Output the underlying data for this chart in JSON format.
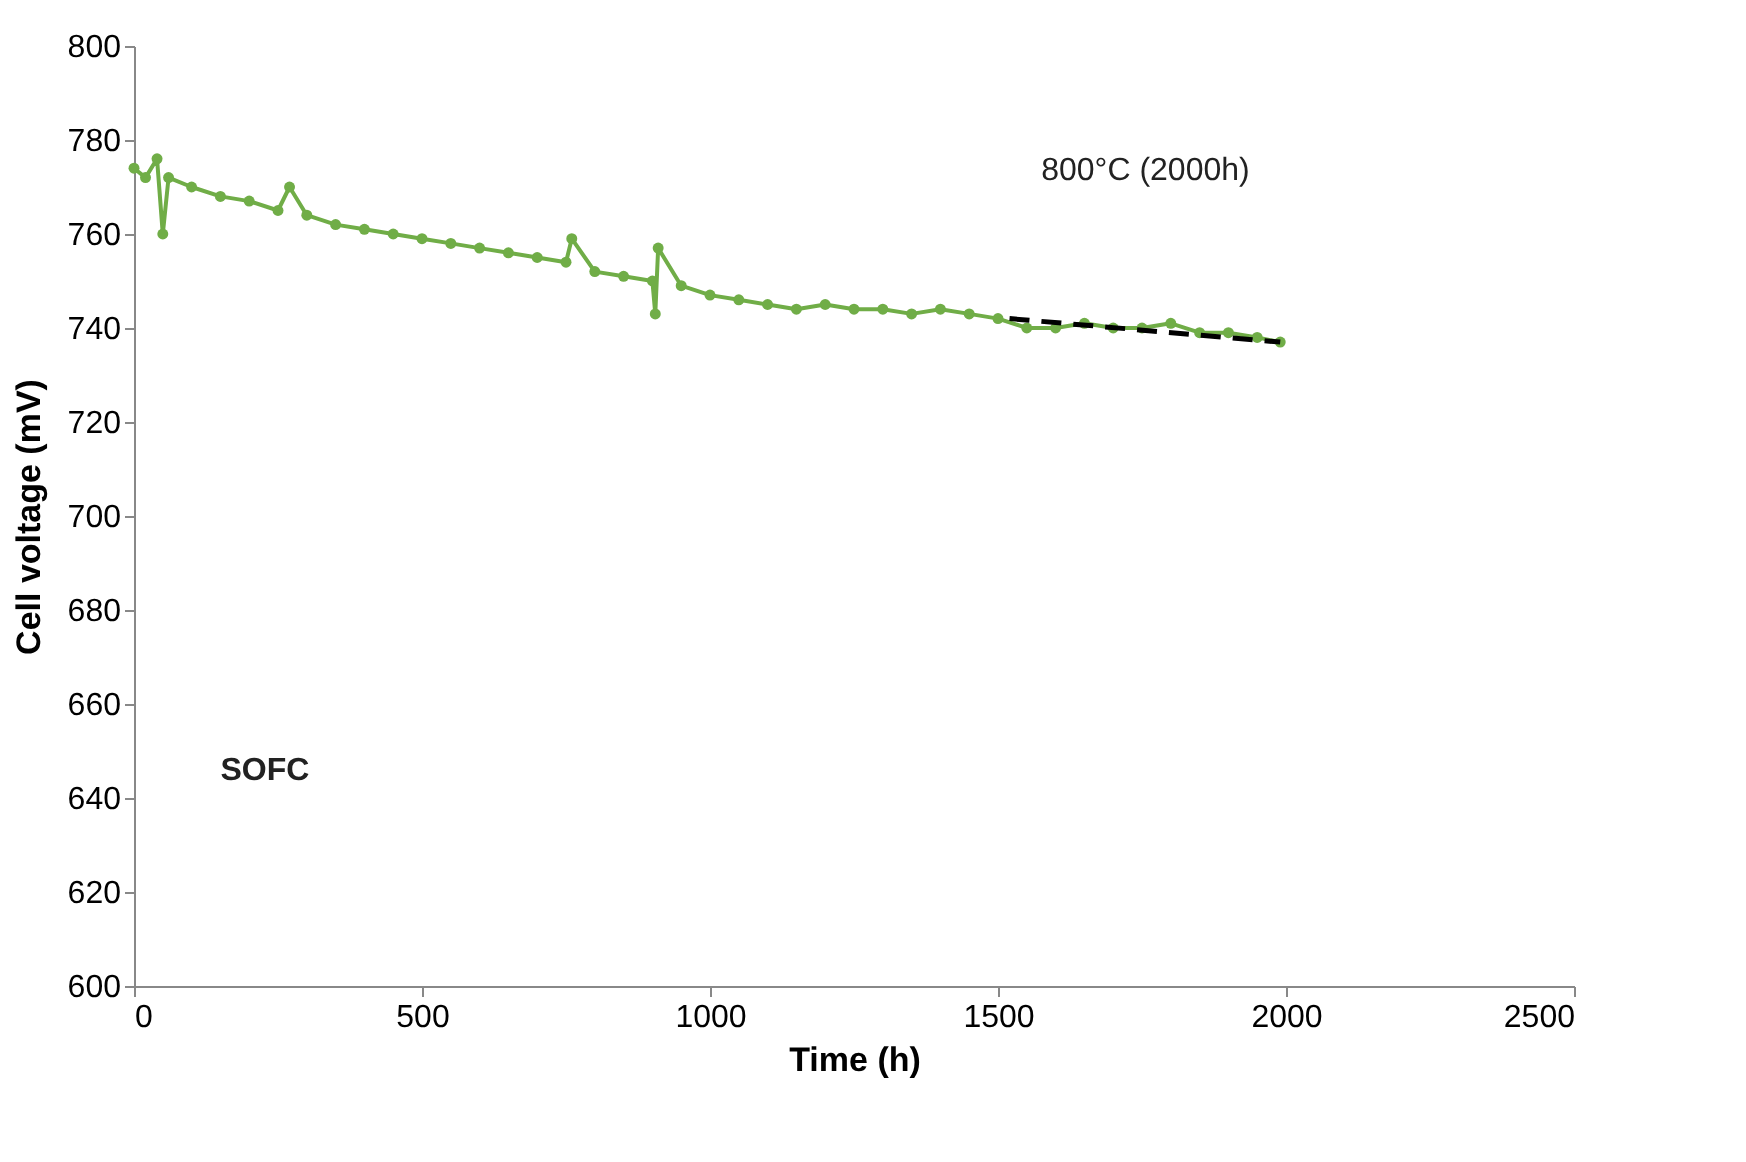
{
  "chart_data": {
    "type": "line",
    "xlabel": "Time (h)",
    "ylabel": "Cell voltage (mV)",
    "xlim": [
      0,
      2500
    ],
    "xticks": [
      0,
      500,
      1000,
      1500,
      2000,
      2500
    ],
    "ylim": [
      600,
      800
    ],
    "yticks": [
      600,
      620,
      640,
      660,
      680,
      700,
      720,
      740,
      760,
      780,
      800
    ],
    "grid": false,
    "marker": "circle",
    "line_style": "solid",
    "annotations": [
      "SOFC",
      "800°C (2000h)"
    ],
    "series": [
      {
        "color": "#70ad47",
        "x": [
          0,
          20,
          40,
          50,
          60,
          100,
          150,
          200,
          250,
          270,
          300,
          350,
          400,
          450,
          500,
          550,
          600,
          650,
          700,
          750,
          760,
          800,
          850,
          900,
          905,
          910,
          950,
          1000,
          1050,
          1100,
          1150,
          1200,
          1250,
          1300,
          1350,
          1400,
          1450,
          1500,
          1550,
          1600,
          1650,
          1700,
          1750,
          1800,
          1850,
          1900,
          1950,
          1990
        ],
        "values": [
          774,
          772,
          776,
          760,
          772,
          770,
          768,
          767,
          765,
          770,
          764,
          762,
          761,
          760,
          759,
          758,
          757,
          756,
          755,
          754,
          759,
          752,
          751,
          750,
          743,
          757,
          749,
          747,
          746,
          745,
          744,
          745,
          744,
          744,
          743,
          744,
          743,
          742,
          740,
          740,
          741,
          740,
          740,
          741,
          739,
          739,
          738,
          737
        ]
      },
      {
        "type": "line",
        "color": "#000000",
        "line_style": "dashed",
        "marker": "none",
        "x": [
          1520,
          1990
        ],
        "values": [
          742,
          737
        ]
      }
    ]
  }
}
